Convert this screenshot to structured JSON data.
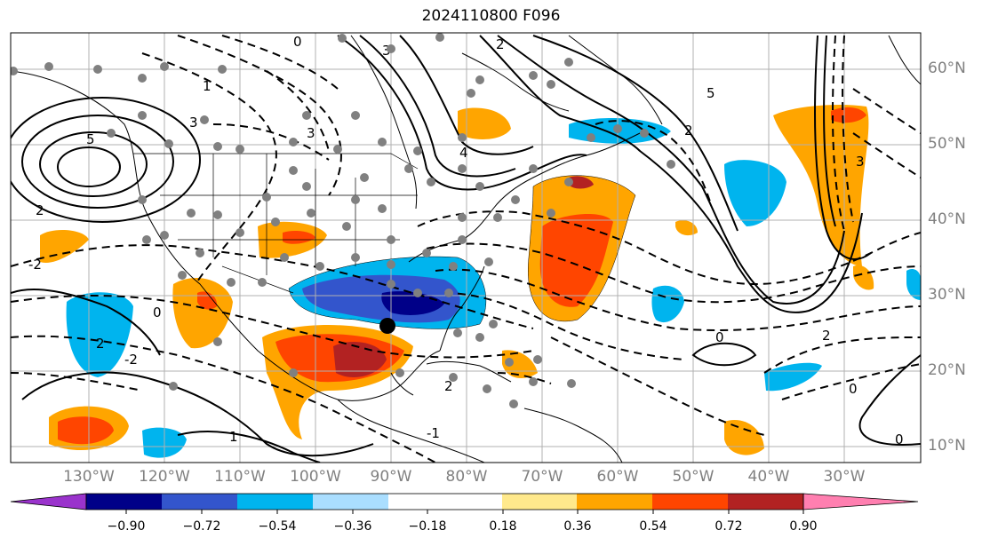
{
  "title": "2024110800 F096",
  "lat_labels": [
    "60°N",
    "50°N",
    "40°N",
    "30°N",
    "20°N",
    "10°N"
  ],
  "lon_labels": [
    "130°W",
    "120°W",
    "110°W",
    "100°W",
    "90°W",
    "80°W",
    "70°W",
    "60°W",
    "50°W",
    "40°W",
    "30°W"
  ],
  "colorbar": {
    "ticks": [
      "−0.90",
      "−0.72",
      "−0.54",
      "−0.36",
      "−0.18",
      "0.18",
      "0.36",
      "0.54",
      "0.72",
      "0.90"
    ],
    "colors": [
      "#9a33cc",
      "#000088",
      "#3355cc",
      "#00b4ee",
      "#aadeff",
      "#ffffff",
      "#ffe98c",
      "#ffa500",
      "#ff4500",
      "#b22222",
      "#ff7fb0"
    ]
  },
  "contour_labels": [
    "3",
    "5",
    "2",
    "1",
    "4",
    "3",
    "2",
    "0",
    "-2",
    "2",
    "0",
    "3",
    "5",
    "2",
    "0",
    "-1",
    "2",
    "3",
    "1",
    "0",
    "-2",
    "2",
    "0"
  ],
  "fill_colors": {
    "orange": "#ffa500",
    "red": "#ff4500",
    "darkred": "#b22222",
    "cyan": "#00b4ee",
    "blue": "#3355cc",
    "navy": "#000088"
  }
}
